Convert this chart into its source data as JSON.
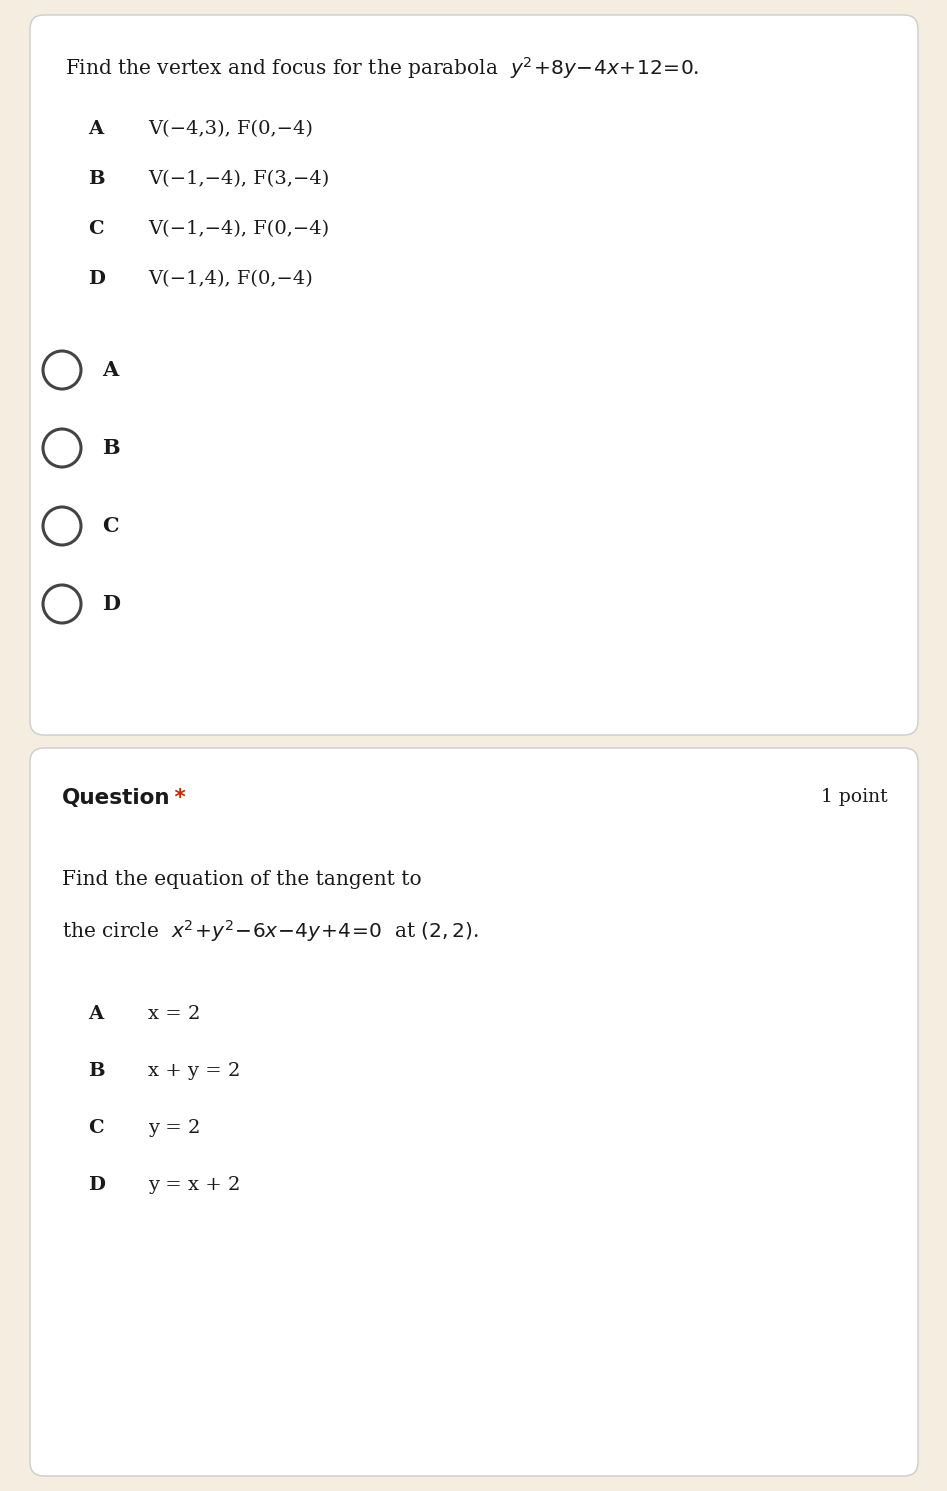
{
  "page_bg": "#f5ede0",
  "card_bg": "#ffffff",
  "card_border": "#cccccc",
  "text_color": "#1a1a1a",
  "red_color": "#cc2200",
  "q1_options": [
    [
      "A",
      "V(−4,3), F(0,−4)"
    ],
    [
      "B",
      "V(−1,−4), F(3,−4)"
    ],
    [
      "C",
      "V(−1,−4), F(0,−4)"
    ],
    [
      "D",
      "V(−1,4), F(0,−4)"
    ]
  ],
  "q1_radio_labels": [
    "A",
    "B",
    "C",
    "D"
  ],
  "q2_label": "Question",
  "q2_star": " *",
  "q2_points": "1 point",
  "q2_question_line1": "Find the equation of the tangent to",
  "q2_options": [
    [
      "A",
      "x = 2"
    ],
    [
      "B",
      "x + y = 2"
    ],
    [
      "C",
      "y = 2"
    ],
    [
      "D",
      "y = x + 2"
    ]
  ]
}
